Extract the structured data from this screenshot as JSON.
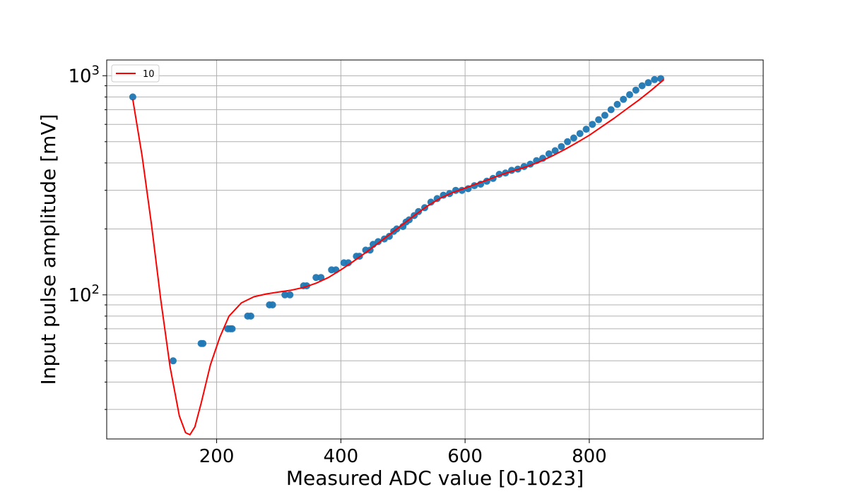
{
  "chart_data": {
    "type": "scatter",
    "title": "",
    "xlabel": "Measured ADC value [0-1023]",
    "ylabel": "Input pulse amplitude [mV]",
    "xlim": [
      23,
      1080
    ],
    "ylim": [
      22,
      1180
    ],
    "yscale": "log",
    "grid": true,
    "legend": {
      "position": "top-left",
      "entries": [
        "10"
      ]
    },
    "x_ticks": [
      200,
      400,
      600,
      800
    ],
    "x_tick_labels": [
      "200",
      "400",
      "600",
      "800"
    ],
    "y_major_ticks": [
      100,
      1000
    ],
    "y_tick_labels": [
      {
        "base": "10",
        "exp": "2"
      },
      {
        "base": "10",
        "exp": "3"
      }
    ],
    "y_minor_ticks": [
      30,
      40,
      50,
      60,
      70,
      80,
      90,
      200,
      300,
      400,
      500,
      600,
      700,
      800,
      900
    ],
    "colors": {
      "points": "#1f77b4",
      "fit": "#ff0000"
    },
    "series": [
      {
        "kind": "scatter",
        "x": [
          65,
          130,
          175,
          178,
          218,
          222,
          225,
          250,
          255,
          285,
          290,
          310,
          318,
          340,
          345,
          360,
          368,
          385,
          392,
          405,
          412,
          425,
          430,
          440,
          447,
          452,
          460,
          470,
          478,
          485,
          490,
          500,
          505,
          510,
          518,
          525,
          535,
          545,
          555,
          565,
          575,
          585,
          595,
          605,
          615,
          625,
          635,
          645,
          655,
          665,
          675,
          685,
          695,
          705,
          715,
          725,
          735,
          745,
          755,
          765,
          775,
          785,
          795,
          805,
          815,
          825,
          835,
          845,
          855,
          865,
          875,
          885,
          895,
          905,
          915
        ],
        "y": [
          800,
          50,
          60,
          60,
          70,
          70,
          70,
          80,
          80,
          90,
          90,
          100,
          100,
          110,
          110,
          120,
          120,
          130,
          130,
          140,
          140,
          150,
          150,
          160,
          160,
          170,
          175,
          180,
          185,
          195,
          200,
          205,
          215,
          220,
          230,
          240,
          250,
          265,
          275,
          285,
          290,
          300,
          300,
          305,
          315,
          320,
          330,
          340,
          355,
          360,
          370,
          375,
          385,
          395,
          410,
          420,
          440,
          455,
          475,
          500,
          520,
          545,
          570,
          600,
          630,
          660,
          700,
          740,
          780,
          820,
          860,
          900,
          930,
          960,
          970
        ]
      },
      {
        "kind": "line",
        "name": "10",
        "x": [
          65,
          80,
          95,
          110,
          125,
          140,
          150,
          157,
          165,
          175,
          190,
          205,
          220,
          240,
          260,
          280,
          300,
          320,
          340,
          360,
          380,
          400,
          420,
          440,
          460,
          480,
          500,
          520,
          540,
          560,
          580,
          600,
          620,
          640,
          660,
          680,
          700,
          720,
          740,
          760,
          780,
          800,
          820,
          840,
          860,
          880,
          900,
          920
        ],
        "y": [
          780,
          430,
          210,
          95,
          47,
          28,
          23.5,
          23,
          25,
          32,
          48,
          64,
          80,
          92,
          98,
          101,
          103,
          105,
          108,
          113,
          120,
          130,
          142,
          156,
          172,
          190,
          210,
          232,
          255,
          276,
          293,
          307,
          322,
          338,
          355,
          370,
          385,
          405,
          430,
          460,
          495,
          535,
          585,
          640,
          705,
          775,
          860,
          960
        ]
      }
    ]
  }
}
